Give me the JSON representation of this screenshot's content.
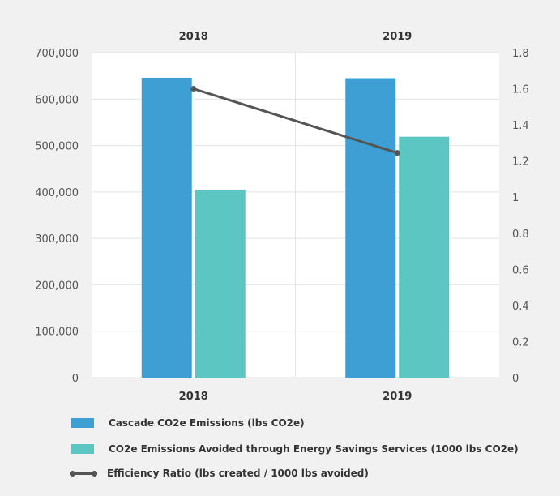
{
  "chart_data": {
    "type": "bar",
    "categories": [
      "2018",
      "2019"
    ],
    "series": [
      {
        "name": "Cascade CO2e Emissions (lbs CO2e)",
        "type": "bar",
        "axis": "left",
        "color": "#3d9fd4",
        "values": [
          646000,
          645000
        ]
      },
      {
        "name": "CO2e Emissions Avoided through Energy Savings Services (1000 lbs CO2e)",
        "type": "bar",
        "axis": "left",
        "color": "#5bc6c2",
        "values": [
          405000,
          519000
        ]
      },
      {
        "name": "Efficiency Ratio (lbs created / 1000 lbs avoided)",
        "type": "line",
        "axis": "right",
        "color": "#555555",
        "values": [
          1.6,
          1.245
        ]
      }
    ],
    "y_left": {
      "min": 0,
      "max": 700000,
      "ticks": [
        "0",
        "100,000",
        "200,000",
        "300,000",
        "400,000",
        "500,000",
        "600,000",
        "700,000"
      ]
    },
    "y_right": {
      "min": 0,
      "max": 1.8,
      "ticks": [
        "0",
        "0.2",
        "0.4",
        "0.6",
        "0.8",
        "1",
        "1.2",
        "1.4",
        "1.6",
        "1.8"
      ]
    },
    "top_labels": [
      "2018",
      "2019"
    ],
    "grid": true,
    "legend_position": "bottom"
  }
}
